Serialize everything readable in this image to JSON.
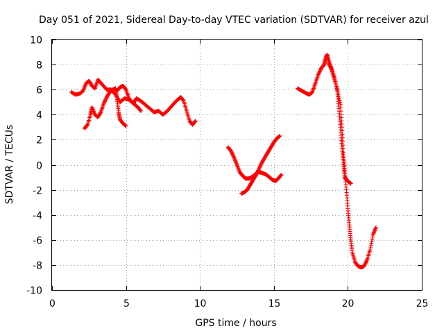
{
  "chart_data": {
    "type": "scatter",
    "title": "Day 051 of 2021, Sidereal Day-to-day VTEC variation (SDTVAR) for receiver azul",
    "xlabel": "GPS time / hours",
    "ylabel": "SDTVAR / TECUs",
    "xlim": [
      0,
      25
    ],
    "ylim": [
      -10,
      10
    ],
    "xticks": [
      "0",
      "5",
      "10",
      "15",
      "20",
      "25"
    ],
    "yticks": [
      "-10",
      "-8",
      "-6",
      "-4",
      "-2",
      "0",
      "2",
      "4",
      "6",
      "8",
      "10"
    ],
    "grid": true,
    "marker": "plus",
    "color": "#ff0000",
    "series": [
      {
        "points": [
          [
            1.3,
            5.8
          ],
          [
            1.6,
            5.6
          ],
          [
            1.9,
            5.7
          ],
          [
            2.1,
            5.9
          ],
          [
            2.3,
            6.5
          ],
          [
            2.5,
            6.7
          ],
          [
            2.7,
            6.3
          ],
          [
            2.9,
            6.1
          ],
          [
            3.1,
            6.8
          ],
          [
            3.4,
            6.4
          ],
          [
            3.7,
            6.0
          ],
          [
            4.0,
            6.0
          ],
          [
            4.3,
            5.6
          ],
          [
            4.6,
            5.0
          ],
          [
            4.9,
            5.3
          ],
          [
            5.2,
            5.2
          ],
          [
            5.5,
            4.9
          ],
          [
            5.7,
            5.3
          ],
          [
            6.0,
            5.1
          ],
          [
            6.3,
            4.8
          ],
          [
            6.6,
            4.5
          ],
          [
            6.9,
            4.2
          ],
          [
            7.2,
            4.3
          ],
          [
            7.5,
            4.0
          ],
          [
            7.8,
            4.3
          ],
          [
            8.1,
            4.7
          ],
          [
            8.4,
            5.1
          ],
          [
            8.7,
            5.4
          ],
          [
            8.9,
            5.1
          ],
          [
            9.1,
            4.3
          ],
          [
            9.3,
            3.5
          ],
          [
            9.5,
            3.2
          ],
          [
            9.7,
            3.5
          ]
        ]
      },
      {
        "points": [
          [
            2.2,
            2.9
          ],
          [
            2.4,
            3.2
          ],
          [
            2.6,
            4.0
          ],
          [
            2.7,
            4.6
          ],
          [
            2.9,
            4.0
          ],
          [
            3.1,
            3.8
          ],
          [
            3.3,
            4.2
          ],
          [
            3.5,
            4.9
          ],
          [
            3.7,
            5.4
          ],
          [
            3.9,
            5.8
          ],
          [
            4.1,
            6.0
          ],
          [
            4.3,
            6.1
          ],
          [
            4.4,
            5.2
          ],
          [
            4.5,
            4.2
          ],
          [
            4.6,
            3.6
          ],
          [
            4.8,
            3.3
          ],
          [
            5.0,
            3.1
          ]
        ]
      },
      {
        "points": [
          [
            4.4,
            5.9
          ],
          [
            4.6,
            6.2
          ],
          [
            4.8,
            6.3
          ],
          [
            5.0,
            6.0
          ],
          [
            5.2,
            5.3
          ],
          [
            5.4,
            5.0
          ],
          [
            5.6,
            4.8
          ],
          [
            5.8,
            4.6
          ],
          [
            6.0,
            4.3
          ]
        ]
      },
      {
        "points": [
          [
            11.9,
            1.4
          ],
          [
            12.1,
            1.1
          ],
          [
            12.3,
            0.6
          ],
          [
            12.5,
            0.0
          ],
          [
            12.7,
            -0.6
          ],
          [
            12.9,
            -0.9
          ],
          [
            13.1,
            -1.1
          ],
          [
            13.3,
            -1.1
          ],
          [
            13.5,
            -1.0
          ],
          [
            13.7,
            -0.8
          ],
          [
            13.9,
            -0.6
          ],
          [
            14.1,
            -0.6
          ],
          [
            14.3,
            -0.7
          ],
          [
            14.5,
            -0.8
          ],
          [
            14.7,
            -1.0
          ],
          [
            14.9,
            -1.2
          ],
          [
            15.1,
            -1.3
          ],
          [
            15.3,
            -1.1
          ],
          [
            15.5,
            -0.8
          ]
        ]
      },
      {
        "points": [
          [
            12.8,
            -2.3
          ],
          [
            13.0,
            -2.2
          ],
          [
            13.2,
            -2.0
          ],
          [
            13.4,
            -1.6
          ],
          [
            13.6,
            -1.2
          ],
          [
            13.8,
            -0.8
          ],
          [
            14.0,
            -0.3
          ],
          [
            14.2,
            0.2
          ],
          [
            14.4,
            0.6
          ],
          [
            14.6,
            1.0
          ],
          [
            14.8,
            1.4
          ],
          [
            15.0,
            1.8
          ],
          [
            15.2,
            2.1
          ],
          [
            15.4,
            2.3
          ]
        ]
      },
      {
        "points": [
          [
            16.6,
            6.1
          ],
          [
            16.9,
            5.9
          ],
          [
            17.2,
            5.7
          ],
          [
            17.4,
            5.6
          ],
          [
            17.6,
            5.8
          ],
          [
            17.8,
            6.5
          ],
          [
            18.0,
            7.2
          ],
          [
            18.2,
            7.7
          ],
          [
            18.4,
            8.0
          ],
          [
            18.5,
            8.5
          ],
          [
            18.6,
            8.8
          ],
          [
            18.7,
            8.3
          ],
          [
            18.9,
            7.7
          ],
          [
            19.1,
            6.8
          ],
          [
            19.3,
            5.8
          ],
          [
            19.4,
            4.5
          ],
          [
            19.5,
            3.0
          ],
          [
            19.6,
            1.5
          ],
          [
            19.7,
            0.0
          ],
          [
            19.8,
            -1.0
          ],
          [
            19.9,
            -1.2
          ],
          [
            20.0,
            -1.3
          ],
          [
            20.1,
            -1.4
          ],
          [
            20.2,
            -1.5
          ]
        ]
      },
      {
        "points": [
          [
            18.7,
            8.1
          ],
          [
            18.9,
            7.6
          ],
          [
            19.1,
            6.9
          ],
          [
            19.3,
            6.0
          ],
          [
            19.5,
            4.8
          ],
          [
            19.6,
            3.0
          ],
          [
            19.7,
            1.0
          ],
          [
            19.8,
            -0.5
          ],
          [
            19.9,
            -2.0
          ],
          [
            20.0,
            -3.5
          ],
          [
            20.1,
            -4.8
          ],
          [
            20.2,
            -6.0
          ],
          [
            20.3,
            -7.0
          ],
          [
            20.5,
            -7.8
          ],
          [
            20.7,
            -8.1
          ],
          [
            20.9,
            -8.2
          ],
          [
            21.1,
            -8.1
          ],
          [
            21.3,
            -7.6
          ],
          [
            21.5,
            -6.8
          ],
          [
            21.7,
            -5.6
          ],
          [
            21.9,
            -5.0
          ]
        ]
      }
    ]
  }
}
